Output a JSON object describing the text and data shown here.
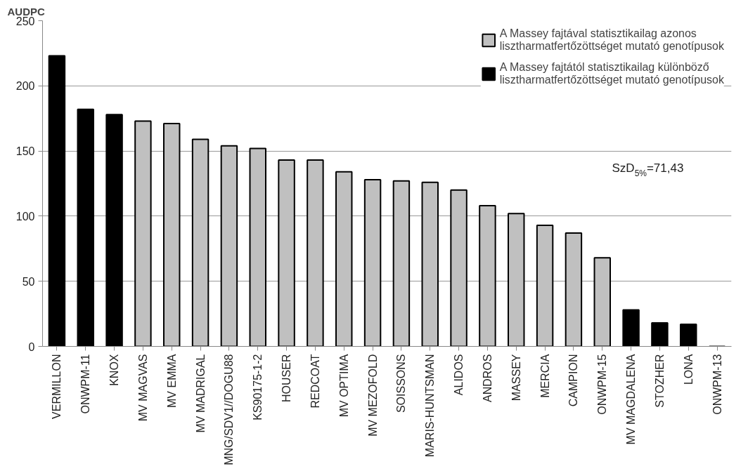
{
  "chart_data": {
    "type": "bar",
    "ylabel": "AUDPC",
    "categories": [
      "VERMILLON",
      "ONWPM-11",
      "KNOX",
      "MV MAGVAS",
      "MV EMMA",
      "MV MADRIGAL",
      "MNG/SDV1//DOGU88",
      "KS90175-1-2",
      "HOUSER",
      "REDCOAT",
      "MV OPTIMA",
      "MV MEZOFOLD",
      "SOISSONS",
      "MARIS-HUNTSMAN",
      "ALIDOS",
      "ANDROS",
      "MASSEY",
      "MERCIA",
      "CAMPION",
      "ONWPM-15",
      "MV MAGDALENA",
      "STOZHER",
      "LONA",
      "ONWPM-13"
    ],
    "series": [
      {
        "name": "A Massey fajtával statisztikailag azonos lisztharmatfertőzöttséget mutató genotípusok",
        "color": "#c0c0c0",
        "values": [
          null,
          null,
          null,
          173,
          171,
          159,
          154,
          152,
          143,
          143,
          134,
          128,
          127,
          126,
          120,
          108,
          102,
          93,
          87,
          68,
          null,
          null,
          null,
          null
        ]
      },
      {
        "name": "A Massey fajtától statisztikailag különböző lisztharmatfertőzöttséget mutató genotípusok",
        "color": "#000000",
        "values": [
          223,
          182,
          178,
          null,
          null,
          null,
          null,
          null,
          null,
          null,
          null,
          null,
          null,
          null,
          null,
          null,
          null,
          null,
          null,
          null,
          28,
          18,
          17,
          0
        ]
      }
    ],
    "ylim": [
      0,
      250
    ],
    "yticks": [
      0,
      50,
      100,
      150,
      200,
      250
    ],
    "grid": "y",
    "legend": "top right",
    "annotations": [
      "SzD$_{5%}$=71,43"
    ]
  }
}
